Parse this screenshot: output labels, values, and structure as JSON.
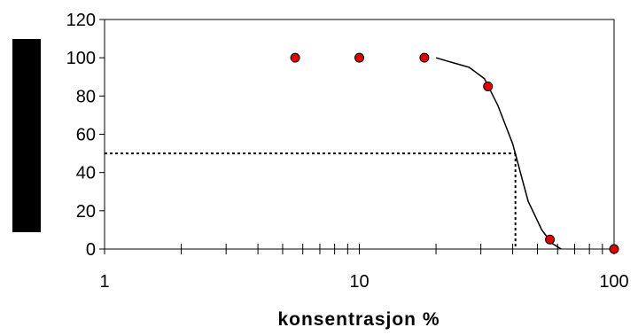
{
  "chart_data": {
    "type": "scatter",
    "title": "",
    "xlabel": "konsentrasjon %",
    "ylabel": "",
    "x_scale": "log",
    "xlim": [
      1,
      100
    ],
    "ylim": [
      0,
      120
    ],
    "x_ticks": [
      "1",
      "10",
      "100"
    ],
    "y_ticks": [
      "0",
      "20",
      "40",
      "60",
      "80",
      "100",
      "120"
    ],
    "grid": false,
    "legend": "none",
    "series": [
      {
        "type": "scatter",
        "x": [
          5.6,
          10,
          18,
          32,
          56,
          100
        ],
        "y": [
          100,
          100,
          100,
          85,
          5,
          0
        ],
        "color": "#e00000"
      },
      {
        "type": "line",
        "x": [
          20,
          27,
          31,
          35,
          40,
          46,
          52,
          57,
          62
        ],
        "y": [
          100,
          95,
          89,
          75,
          55,
          25,
          10,
          3,
          0
        ],
        "color": "#000000"
      }
    ],
    "reference": {
      "x": 41,
      "y": 50,
      "style": "dotted"
    }
  }
}
